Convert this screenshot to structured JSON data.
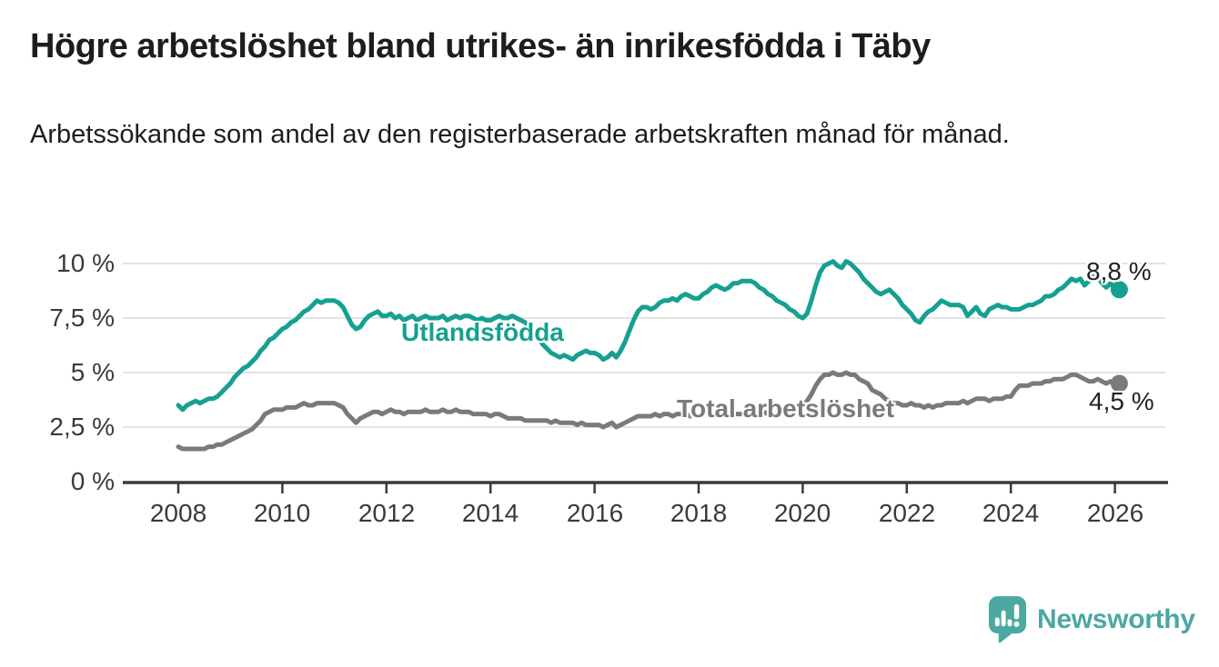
{
  "header": {
    "title": "Högre arbetslöshet bland utrikes- än inrikesfödda i Täby",
    "subtitle": "Arbetssökande som andel av den registerbaserade arbetskraften månad för månad."
  },
  "footer": {
    "brand": "Newsworthy"
  },
  "colors": {
    "foreign_born_line": "#16a091",
    "total_line": "#797a7e",
    "brand_teal": "#4ca8a0",
    "grid": "#e3e3e3",
    "axis": "#3b3b3b",
    "text": "#1d1d1b"
  },
  "chart_data": {
    "type": "line",
    "title": "Högre arbetslöshet bland utrikes- än inrikesfödda i Täby",
    "subtitle": "Arbetssökande som andel av den registerbaserade arbetskraften månad för månad.",
    "unit": "%",
    "grid": "horizontal",
    "legend_position": "inline-labels",
    "x_start_year": 2008,
    "x_step_months": 1,
    "x_ticks": [
      2008,
      2010,
      2012,
      2014,
      2016,
      2018,
      2020,
      2022,
      2024,
      2026
    ],
    "y_ticks": [
      {
        "value": 10,
        "label": "10 %"
      },
      {
        "value": 7.5,
        "label": "7,5 %"
      },
      {
        "value": 5,
        "label": "5 %"
      },
      {
        "value": 2.5,
        "label": "2,5 %"
      },
      {
        "value": 0,
        "label": "0 %"
      }
    ],
    "ylim": [
      0,
      10.5
    ],
    "series": [
      {
        "name": "Utlandsfödda",
        "color": "#16a091",
        "end_label": "8,8 %",
        "end_value": 8.8,
        "values": [
          3.5,
          3.3,
          3.5,
          3.6,
          3.7,
          3.6,
          3.7,
          3.8,
          3.8,
          3.9,
          4.1,
          4.3,
          4.5,
          4.8,
          5.0,
          5.2,
          5.3,
          5.5,
          5.7,
          6.0,
          6.2,
          6.5,
          6.6,
          6.8,
          7.0,
          7.1,
          7.3,
          7.4,
          7.6,
          7.8,
          7.9,
          8.1,
          8.3,
          8.2,
          8.3,
          8.3,
          8.3,
          8.2,
          8.0,
          7.6,
          7.2,
          7.0,
          7.1,
          7.4,
          7.6,
          7.7,
          7.8,
          7.6,
          7.6,
          7.7,
          7.5,
          7.6,
          7.4,
          7.5,
          7.6,
          7.4,
          7.5,
          7.6,
          7.5,
          7.5,
          7.5,
          7.6,
          7.4,
          7.5,
          7.6,
          7.5,
          7.6,
          7.6,
          7.5,
          7.4,
          7.5,
          7.4,
          7.4,
          7.5,
          7.6,
          7.5,
          7.5,
          7.6,
          7.5,
          7.4,
          7.3,
          7.1,
          6.9,
          6.6,
          6.3,
          6.1,
          5.9,
          5.8,
          5.7,
          5.8,
          5.7,
          5.6,
          5.8,
          5.9,
          6.0,
          5.9,
          5.9,
          5.8,
          5.6,
          5.7,
          5.9,
          5.7,
          6.0,
          6.4,
          6.9,
          7.4,
          7.8,
          8.0,
          8.0,
          7.9,
          8.0,
          8.2,
          8.3,
          8.3,
          8.4,
          8.3,
          8.5,
          8.6,
          8.5,
          8.4,
          8.4,
          8.6,
          8.7,
          8.9,
          9.0,
          8.9,
          8.8,
          8.9,
          9.1,
          9.1,
          9.2,
          9.2,
          9.2,
          9.1,
          8.9,
          8.8,
          8.6,
          8.5,
          8.3,
          8.2,
          8.1,
          7.9,
          7.8,
          7.6,
          7.5,
          7.7,
          8.3,
          9.0,
          9.6,
          9.9,
          10.0,
          10.1,
          9.9,
          9.8,
          10.1,
          10.0,
          9.8,
          9.6,
          9.3,
          9.1,
          8.9,
          8.7,
          8.6,
          8.7,
          8.8,
          8.6,
          8.4,
          8.1,
          7.9,
          7.7,
          7.4,
          7.3,
          7.6,
          7.8,
          7.9,
          8.1,
          8.3,
          8.2,
          8.1,
          8.1,
          8.1,
          8.0,
          7.6,
          7.8,
          8.0,
          7.7,
          7.6,
          7.9,
          8.0,
          8.1,
          8.0,
          8.0,
          7.9,
          7.9,
          7.9,
          8.0,
          8.1,
          8.1,
          8.2,
          8.3,
          8.5,
          8.5,
          8.6,
          8.8,
          8.9,
          9.1,
          9.3,
          9.2,
          9.3,
          9.0,
          9.2,
          9.4,
          9.4,
          9.1,
          8.9,
          9.1,
          8.8,
          8.8
        ]
      },
      {
        "name": "Total arbetslöshet",
        "color": "#797a7e",
        "end_label": "4,5 %",
        "end_value": 4.5,
        "values": [
          1.6,
          1.5,
          1.5,
          1.5,
          1.5,
          1.5,
          1.5,
          1.6,
          1.6,
          1.7,
          1.7,
          1.8,
          1.9,
          2.0,
          2.1,
          2.2,
          2.3,
          2.4,
          2.6,
          2.8,
          3.1,
          3.2,
          3.3,
          3.3,
          3.3,
          3.4,
          3.4,
          3.4,
          3.5,
          3.6,
          3.5,
          3.5,
          3.6,
          3.6,
          3.6,
          3.6,
          3.6,
          3.5,
          3.4,
          3.1,
          2.9,
          2.7,
          2.9,
          3.0,
          3.1,
          3.2,
          3.2,
          3.1,
          3.2,
          3.3,
          3.2,
          3.2,
          3.1,
          3.2,
          3.2,
          3.2,
          3.2,
          3.3,
          3.2,
          3.2,
          3.2,
          3.3,
          3.2,
          3.2,
          3.3,
          3.2,
          3.2,
          3.2,
          3.1,
          3.1,
          3.1,
          3.1,
          3.0,
          3.1,
          3.1,
          3.0,
          2.9,
          2.9,
          2.9,
          2.9,
          2.8,
          2.8,
          2.8,
          2.8,
          2.8,
          2.8,
          2.7,
          2.8,
          2.7,
          2.7,
          2.7,
          2.7,
          2.6,
          2.7,
          2.6,
          2.6,
          2.6,
          2.6,
          2.5,
          2.6,
          2.7,
          2.5,
          2.6,
          2.7,
          2.8,
          2.9,
          3.0,
          3.0,
          3.0,
          3.0,
          3.1,
          3.0,
          3.1,
          3.1,
          3.0,
          3.1,
          3.1,
          3.1,
          3.0,
          3.1,
          3.0,
          3.1,
          3.1,
          3.1,
          3.0,
          3.0,
          3.0,
          3.1,
          3.1,
          3.1,
          3.1,
          3.1,
          3.1,
          3.1,
          3.1,
          3.2,
          3.1,
          3.1,
          3.1,
          3.2,
          3.2,
          3.2,
          3.2,
          3.3,
          3.5,
          3.7,
          4.0,
          4.4,
          4.7,
          4.9,
          4.9,
          5.0,
          4.9,
          4.9,
          5.0,
          4.9,
          4.9,
          4.7,
          4.6,
          4.5,
          4.2,
          4.1,
          4.0,
          3.8,
          3.7,
          3.6,
          3.6,
          3.5,
          3.5,
          3.6,
          3.5,
          3.5,
          3.4,
          3.5,
          3.4,
          3.5,
          3.5,
          3.6,
          3.6,
          3.6,
          3.6,
          3.7,
          3.6,
          3.7,
          3.8,
          3.8,
          3.8,
          3.7,
          3.8,
          3.8,
          3.8,
          3.9,
          3.9,
          4.2,
          4.4,
          4.4,
          4.4,
          4.5,
          4.5,
          4.5,
          4.6,
          4.6,
          4.7,
          4.7,
          4.7,
          4.8,
          4.9,
          4.9,
          4.8,
          4.7,
          4.6,
          4.6,
          4.7,
          4.6,
          4.5,
          4.6,
          4.5,
          4.5
        ]
      }
    ]
  }
}
